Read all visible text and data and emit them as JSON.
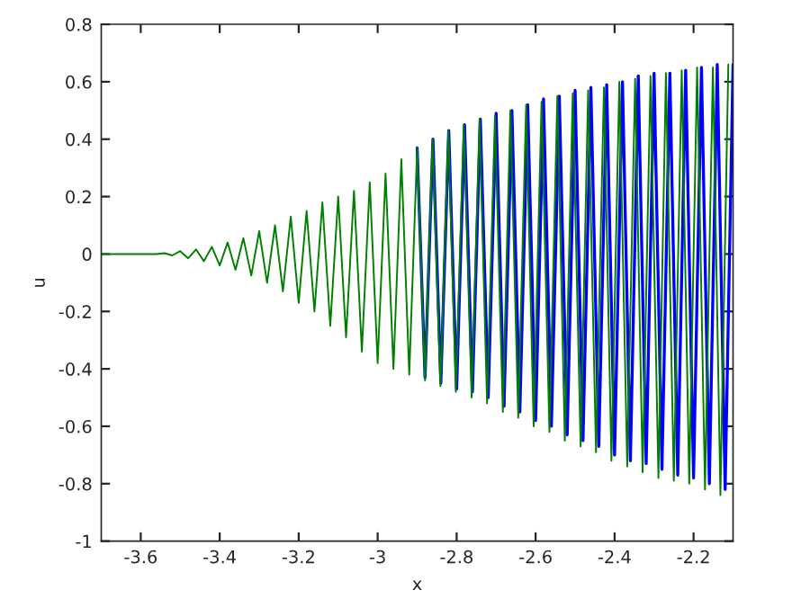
{
  "chart_data": {
    "type": "line",
    "xlabel": "x",
    "ylabel": "u",
    "xlim": [
      -3.7,
      -2.1
    ],
    "ylim": [
      -1,
      0.8
    ],
    "xticks": [
      -3.6,
      -3.4,
      -3.2,
      -3,
      -2.8,
      -2.6,
      -2.4,
      -2.2
    ],
    "yticks": [
      -1,
      -0.8,
      -0.6,
      -0.4,
      -0.2,
      0,
      0.2,
      0.4,
      0.6,
      0.8
    ],
    "grid": false,
    "legend": false,
    "marker": "none",
    "line_style": "solid",
    "series": [
      {
        "color": "#0000ff",
        "x": [
          -2.9,
          -2.88,
          -2.86,
          -2.84,
          -2.82,
          -2.8,
          -2.78,
          -2.76,
          -2.74,
          -2.72,
          -2.7,
          -2.68,
          -2.66,
          -2.64,
          -2.62,
          -2.6,
          -2.58,
          -2.56,
          -2.54,
          -2.52,
          -2.5,
          -2.48,
          -2.46,
          -2.44,
          -2.42,
          -2.4,
          -2.38,
          -2.36,
          -2.34,
          -2.32,
          -2.3,
          -2.28,
          -2.26,
          -2.24,
          -2.22,
          -2.2,
          -2.18,
          -2.16,
          -2.14,
          -2.12,
          -2.1
        ],
        "values": [
          0.37,
          -0.43,
          0.4,
          -0.45,
          0.43,
          -0.47,
          0.45,
          -0.48,
          0.47,
          -0.5,
          0.49,
          -0.53,
          0.5,
          -0.55,
          0.52,
          -0.58,
          0.54,
          -0.6,
          0.55,
          -0.63,
          0.57,
          -0.65,
          0.58,
          -0.67,
          0.59,
          -0.7,
          0.6,
          -0.72,
          0.62,
          -0.73,
          0.63,
          -0.75,
          0.63,
          -0.77,
          0.64,
          -0.78,
          0.65,
          -0.8,
          0.66,
          -0.82,
          0.66
        ]
      },
      {
        "color": "#008000",
        "x": [
          -3.7,
          -3.56,
          -3.54,
          -3.52,
          -3.5,
          -3.48,
          -3.46,
          -3.44,
          -3.42,
          -3.4,
          -3.38,
          -3.36,
          -3.34,
          -3.32,
          -3.3,
          -3.28,
          -3.26,
          -3.24,
          -3.22,
          -3.2,
          -3.18,
          -3.16,
          -3.14,
          -3.12,
          -3.1,
          -3.08,
          -3.06,
          -3.04,
          -3.02,
          -3.0,
          -2.98,
          -2.96,
          -2.94,
          -2.92,
          -2.9,
          -2.88,
          -2.861,
          -2.841,
          -2.821,
          -2.802,
          -2.782,
          -2.762,
          -2.742,
          -2.723,
          -2.703,
          -2.683,
          -2.664,
          -2.644,
          -2.624,
          -2.605,
          -2.585,
          -2.565,
          -2.545,
          -2.526,
          -2.506,
          -2.486,
          -2.467,
          -2.447,
          -2.427,
          -2.408,
          -2.388,
          -2.368,
          -2.348,
          -2.329,
          -2.309,
          -2.289,
          -2.27,
          -2.25,
          -2.23,
          -2.211,
          -2.191,
          -2.171,
          -2.151,
          -2.132,
          -2.112
        ],
        "values": [
          0,
          0,
          0.003,
          -0.005,
          0.01,
          -0.015,
          0.016,
          -0.025,
          0.025,
          -0.04,
          0.04,
          -0.055,
          0.055,
          -0.075,
          0.08,
          -0.1,
          0.1,
          -0.13,
          0.13,
          -0.17,
          0.15,
          -0.2,
          0.18,
          -0.25,
          0.2,
          -0.29,
          0.22,
          -0.34,
          0.25,
          -0.38,
          0.28,
          -0.4,
          0.33,
          -0.42,
          0.37,
          -0.44,
          0.4,
          -0.46,
          0.43,
          -0.48,
          0.45,
          -0.5,
          0.47,
          -0.52,
          0.48,
          -0.55,
          0.5,
          -0.57,
          0.52,
          -0.6,
          0.53,
          -0.62,
          0.55,
          -0.65,
          0.56,
          -0.67,
          0.57,
          -0.69,
          0.58,
          -0.72,
          0.6,
          -0.74,
          0.61,
          -0.76,
          0.62,
          -0.78,
          0.63,
          -0.79,
          0.64,
          -0.8,
          0.65,
          -0.82,
          0.65,
          -0.84,
          0.66
        ]
      }
    ]
  }
}
